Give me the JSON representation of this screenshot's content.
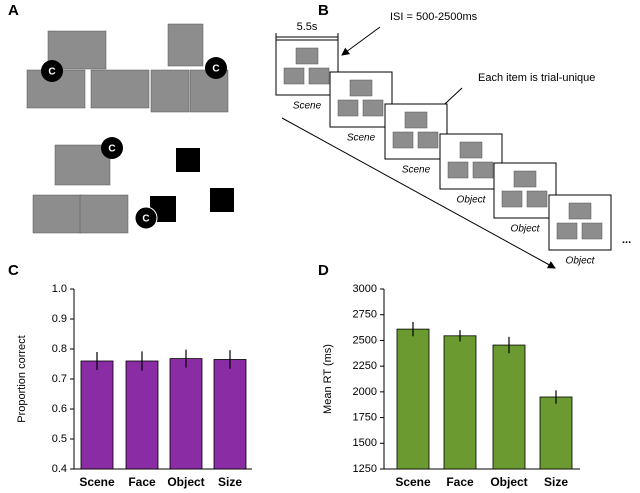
{
  "panel_labels": [
    "A",
    "B",
    "C",
    "D"
  ],
  "panel_a": {
    "badges": [
      "C",
      "C",
      "C",
      "C"
    ]
  },
  "panel_b": {
    "duration": "5.5s",
    "isi_note": "ISI = 500-2500ms",
    "unique_note": "Each item is trial-unique",
    "frame_labels": [
      "Scene",
      "Scene",
      "Scene",
      "Object",
      "Object",
      "Object"
    ],
    "ellipsis": "..."
  },
  "chart_data": [
    {
      "type": "bar",
      "ylabel": "Proportion correct",
      "categories": [
        "Scene",
        "Face",
        "Object",
        "Size"
      ],
      "values": [
        0.76,
        0.76,
        0.768,
        0.765
      ],
      "errors": [
        0.03,
        0.032,
        0.03,
        0.031
      ],
      "color": "#8a2ca3",
      "ylim": [
        0.4,
        1
      ],
      "yticks": [
        0.4,
        0.5,
        0.6,
        0.7,
        0.8,
        0.9,
        {
          "value": 1,
          "label": "1.0"
        }
      ]
    },
    {
      "type": "bar",
      "ylabel": "Mean RT (ms)",
      "categories": [
        "Scene",
        "Face",
        "Object",
        "Size"
      ],
      "values": [
        2610,
        2545,
        2455,
        1950
      ],
      "errors": [
        70,
        55,
        80,
        65
      ],
      "color": "#6b9a30",
      "ylim": [
        1250,
        3000
      ],
      "yticks": [
        1250,
        1500,
        1750,
        2000,
        2250,
        2500,
        2750,
        3000
      ]
    }
  ]
}
